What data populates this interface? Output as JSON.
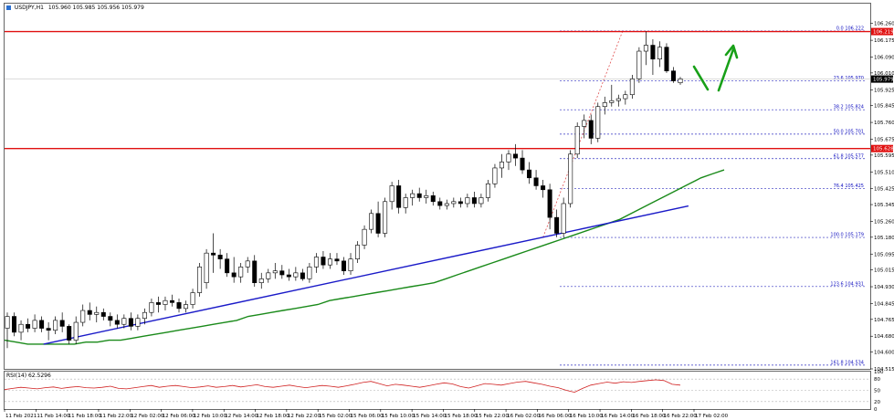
{
  "header": {
    "symbol": "USDJPY,H1",
    "ohlc": "105.960 105.985 105.956 105.979",
    "rsi_label": "RSI(14) 62.5296"
  },
  "colors": {
    "bull": "#ffffff",
    "bear": "#000000",
    "ma": "#1a8a1a",
    "trend": "#1a1ac8",
    "resistance": "#e01010",
    "fib": "#3030c0",
    "rsi": "#d02020",
    "arrow": "#18a018"
  },
  "chart_data": {
    "type": "candlestick",
    "price_axis": {
      "min": 104.515,
      "max": 106.36,
      "ticks": [
        "106.260",
        "106.175",
        "106.090",
        "106.010",
        "105.925",
        "105.845",
        "105.760",
        "105.675",
        "105.595",
        "105.510",
        "105.425",
        "105.345",
        "105.260",
        "105.180",
        "105.095",
        "105.015",
        "104.930",
        "104.845",
        "104.765",
        "104.680",
        "104.600",
        "104.515"
      ]
    },
    "time_axis": {
      "labels": [
        "11 Feb 2021",
        "11 Feb 14:00",
        "11 Feb 18:00",
        "11 Feb 22:00",
        "12 Feb 02:00",
        "12 Feb 06:00",
        "12 Feb 10:00",
        "12 Feb 14:00",
        "12 Feb 18:00",
        "12 Feb 22:00",
        "15 Feb 02:00",
        "15 Feb 06:00",
        "15 Feb 10:00",
        "15 Feb 14:00",
        "15 Feb 18:00",
        "15 Feb 22:00",
        "16 Feb 02:00",
        "16 Feb 06:00",
        "16 Feb 10:00",
        "16 Feb 14:00",
        "16 Feb 18:00",
        "16 Feb 22:00",
        "17 Feb 02:00"
      ]
    },
    "current_price": "105.979",
    "price_tags": [
      {
        "label": "106.219",
        "value": 106.219,
        "color": "#e01010"
      },
      {
        "label": "105.979",
        "value": 105.979,
        "color": "#000000"
      },
      {
        "label": "105.628",
        "value": 105.628,
        "color": "#e01010"
      }
    ],
    "resistance_lines": [
      106.219,
      105.628
    ],
    "fibonacci": [
      {
        "label": "0.0 106.222",
        "value": 106.222
      },
      {
        "label": "23.6 105.970",
        "value": 105.97
      },
      {
        "label": "38.2 105.824",
        "value": 105.824
      },
      {
        "label": "50.0 105.701",
        "value": 105.701
      },
      {
        "label": "61.8 105.577",
        "value": 105.577
      },
      {
        "label": "76.4 105.425",
        "value": 105.425
      },
      {
        "label": "100.0 105.179",
        "value": 105.179
      },
      {
        "label": "123.6 104.931",
        "value": 104.931
      },
      {
        "label": "161.8 104.534",
        "value": 104.534
      }
    ],
    "candles": [
      [
        104.72,
        104.8,
        104.62,
        104.78
      ],
      [
        104.78,
        104.8,
        104.68,
        104.7
      ],
      [
        104.7,
        104.76,
        104.66,
        104.74
      ],
      [
        104.74,
        104.77,
        104.7,
        104.72
      ],
      [
        104.72,
        104.79,
        104.7,
        104.76
      ],
      [
        104.76,
        104.78,
        104.7,
        104.72
      ],
      [
        104.72,
        104.75,
        104.66,
        104.71
      ],
      [
        104.71,
        104.78,
        104.69,
        104.76
      ],
      [
        104.76,
        104.8,
        104.7,
        104.73
      ],
      [
        104.73,
        104.74,
        104.64,
        104.66
      ],
      [
        104.66,
        104.78,
        104.64,
        104.75
      ],
      [
        104.75,
        104.84,
        104.73,
        104.81
      ],
      [
        104.81,
        104.85,
        104.76,
        104.79
      ],
      [
        104.79,
        104.83,
        104.75,
        104.8
      ],
      [
        104.8,
        104.82,
        104.76,
        104.78
      ],
      [
        104.78,
        104.8,
        104.73,
        104.76
      ],
      [
        104.76,
        104.79,
        104.72,
        104.74
      ],
      [
        104.74,
        104.79,
        104.72,
        104.77
      ],
      [
        104.77,
        104.8,
        104.71,
        104.73
      ],
      [
        104.73,
        104.79,
        104.71,
        104.77
      ],
      [
        104.77,
        104.82,
        104.74,
        104.8
      ],
      [
        104.8,
        104.87,
        104.78,
        104.85
      ],
      [
        104.85,
        104.88,
        104.8,
        104.84
      ],
      [
        104.84,
        104.88,
        104.81,
        104.86
      ],
      [
        104.86,
        104.89,
        104.83,
        104.85
      ],
      [
        104.85,
        104.87,
        104.8,
        104.82
      ],
      [
        104.82,
        104.86,
        104.8,
        104.84
      ],
      [
        104.84,
        104.92,
        104.82,
        104.9
      ],
      [
        104.9,
        105.05,
        104.88,
        105.03
      ],
      [
        104.95,
        105.12,
        104.92,
        105.1
      ],
      [
        105.1,
        105.2,
        105.0,
        105.09
      ],
      [
        105.09,
        105.12,
        105.02,
        105.07
      ],
      [
        105.07,
        105.1,
        104.98,
        105.0
      ],
      [
        105.0,
        105.08,
        104.95,
        104.98
      ],
      [
        104.98,
        105.05,
        104.95,
        105.03
      ],
      [
        105.03,
        105.08,
        105.0,
        105.06
      ],
      [
        105.06,
        105.09,
        104.93,
        104.95
      ],
      [
        104.95,
        105.0,
        104.92,
        104.97
      ],
      [
        104.97,
        105.02,
        104.95,
        105.0
      ],
      [
        105.0,
        105.05,
        104.97,
        105.01
      ],
      [
        105.01,
        105.04,
        104.97,
        104.99
      ],
      [
        104.99,
        105.02,
        104.96,
        104.98
      ],
      [
        104.98,
        105.03,
        104.96,
        105.0
      ],
      [
        105.0,
        105.02,
        104.96,
        104.97
      ],
      [
        104.97,
        105.05,
        104.95,
        105.03
      ],
      [
        105.03,
        105.1,
        105.0,
        105.08
      ],
      [
        105.08,
        105.11,
        105.02,
        105.04
      ],
      [
        105.04,
        105.1,
        105.02,
        105.07
      ],
      [
        105.07,
        105.1,
        105.04,
        105.06
      ],
      [
        105.06,
        105.08,
        104.99,
        105.01
      ],
      [
        105.01,
        105.1,
        104.99,
        105.07
      ],
      [
        105.07,
        105.16,
        105.05,
        105.14
      ],
      [
        105.14,
        105.24,
        105.12,
        105.22
      ],
      [
        105.22,
        105.32,
        105.2,
        105.3
      ],
      [
        105.3,
        105.36,
        105.18,
        105.2
      ],
      [
        105.2,
        105.38,
        105.18,
        105.36
      ],
      [
        105.36,
        105.46,
        105.32,
        105.44
      ],
      [
        105.44,
        105.47,
        105.3,
        105.33
      ],
      [
        105.33,
        105.4,
        105.3,
        105.38
      ],
      [
        105.38,
        105.42,
        105.34,
        105.4
      ],
      [
        105.4,
        105.43,
        105.36,
        105.38
      ],
      [
        105.38,
        105.42,
        105.35,
        105.39
      ],
      [
        105.39,
        105.41,
        105.34,
        105.36
      ],
      [
        105.36,
        105.38,
        105.32,
        105.34
      ],
      [
        105.34,
        105.37,
        105.32,
        105.35
      ],
      [
        105.35,
        105.38,
        105.33,
        105.36
      ],
      [
        105.36,
        105.38,
        105.33,
        105.35
      ],
      [
        105.35,
        105.4,
        105.33,
        105.38
      ],
      [
        105.38,
        105.41,
        105.33,
        105.35
      ],
      [
        105.35,
        105.4,
        105.33,
        105.38
      ],
      [
        105.38,
        105.47,
        105.36,
        105.45
      ],
      [
        105.45,
        105.55,
        105.43,
        105.53
      ],
      [
        105.53,
        105.6,
        105.48,
        105.56
      ],
      [
        105.56,
        105.62,
        105.52,
        105.6
      ],
      [
        105.6,
        105.65,
        105.54,
        105.58
      ],
      [
        105.58,
        105.62,
        105.5,
        105.52
      ],
      [
        105.52,
        105.56,
        105.45,
        105.48
      ],
      [
        105.48,
        105.52,
        105.42,
        105.44
      ],
      [
        105.44,
        105.47,
        105.38,
        105.42
      ],
      [
        105.42,
        105.45,
        105.22,
        105.28
      ],
      [
        105.28,
        105.32,
        105.18,
        105.2
      ],
      [
        105.2,
        105.38,
        105.18,
        105.35
      ],
      [
        105.35,
        105.62,
        105.33,
        105.6
      ],
      [
        105.6,
        105.76,
        105.58,
        105.74
      ],
      [
        105.74,
        105.8,
        105.68,
        105.77
      ],
      [
        105.77,
        105.8,
        105.65,
        105.68
      ],
      [
        105.68,
        105.86,
        105.66,
        105.84
      ],
      [
        105.84,
        105.89,
        105.8,
        105.86
      ],
      [
        105.86,
        105.95,
        105.84,
        105.87
      ],
      [
        105.87,
        105.9,
        105.84,
        105.88
      ],
      [
        105.88,
        105.92,
        105.85,
        105.9
      ],
      [
        105.9,
        106.0,
        105.88,
        105.98
      ],
      [
        105.98,
        106.14,
        105.96,
        106.12
      ],
      [
        106.12,
        106.22,
        106.05,
        106.15
      ],
      [
        106.15,
        106.18,
        106.0,
        106.08
      ],
      [
        106.08,
        106.17,
        106.04,
        106.14
      ],
      [
        106.14,
        106.16,
        106.01,
        106.02
      ],
      [
        106.02,
        106.04,
        105.96,
        105.97
      ],
      [
        105.96,
        105.99,
        105.95,
        105.98
      ]
    ],
    "ma_values": [
      104.66,
      104.65,
      104.64,
      104.64,
      104.64,
      104.64,
      104.64,
      104.65,
      104.65,
      104.66,
      104.66,
      104.67,
      104.68,
      104.69,
      104.7,
      104.71,
      104.72,
      104.73,
      104.74,
      104.75,
      104.76,
      104.78,
      104.79,
      104.8,
      104.81,
      104.82,
      104.83,
      104.84,
      104.86,
      104.87,
      104.88,
      104.89,
      104.9,
      104.91,
      104.92,
      104.93,
      104.94,
      104.95,
      104.97,
      104.99,
      105.01,
      105.03,
      105.05,
      105.07,
      105.09,
      105.11,
      105.13,
      105.15,
      105.17,
      105.19,
      105.21,
      105.23,
      105.25,
      105.27,
      105.3,
      105.33,
      105.36,
      105.39,
      105.42,
      105.45,
      105.48,
      105.5,
      105.52
    ],
    "rsi": {
      "ticks": [
        "100",
        "80",
        "50",
        "20",
        "0"
      ],
      "levels": [
        80,
        50,
        20
      ],
      "values": [
        52,
        55,
        58,
        56,
        54,
        57,
        59,
        55,
        58,
        60,
        57,
        56,
        58,
        61,
        55,
        54,
        57,
        60,
        63,
        58,
        61,
        63,
        60,
        57,
        59,
        62,
        58,
        60,
        63,
        59,
        62,
        65,
        60,
        58,
        61,
        64,
        60,
        57,
        60,
        63,
        61,
        58,
        62,
        66,
        71,
        74,
        68,
        62,
        66,
        64,
        61,
        58,
        62,
        66,
        70,
        67,
        60,
        56,
        62,
        68,
        66,
        64,
        68,
        72,
        74,
        70,
        66,
        61,
        57,
        50,
        45,
        55,
        64,
        68,
        72,
        69,
        73,
        71,
        74,
        76,
        78,
        76,
        66,
        64
      ]
    },
    "trendline_points": [
      [
        0.045,
        104.64
      ],
      [
        0.622,
        105.18
      ],
      [
        0.79,
        105.338
      ]
    ],
    "fib_line_points": [
      [
        0.622,
        105.18
      ],
      [
        0.714,
        106.222
      ]
    ]
  }
}
